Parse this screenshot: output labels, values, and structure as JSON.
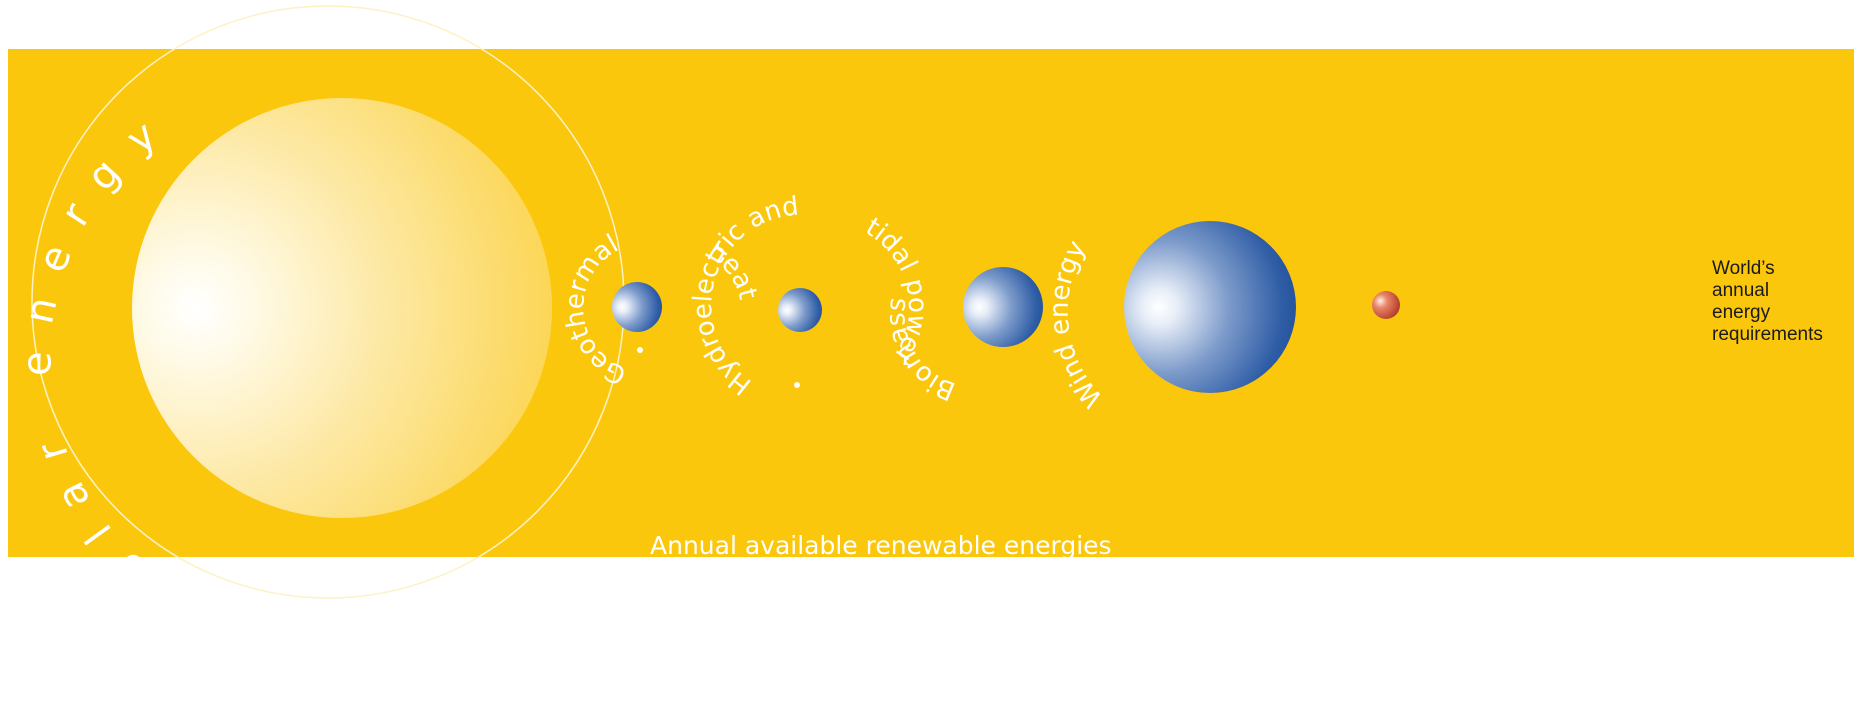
{
  "colors": {
    "background_band": "#fbc70d",
    "page": "#ffffff",
    "text_on_band": "#ffffff",
    "legend_text": "#1a1a1a",
    "sphere_blue": "#1d4f9a",
    "sphere_red": "#b02f1b"
  },
  "diagram": {
    "title": "Annual available renewable energies",
    "sources": [
      {
        "key": "solar",
        "label": "Solar energy"
      },
      {
        "key": "geothermal",
        "label": "Geothermal heat"
      },
      {
        "key": "hydro",
        "label": "Hydroelectric and tidal power"
      },
      {
        "key": "biomass",
        "label": "Biomass"
      },
      {
        "key": "wind",
        "label": "Wind energy"
      }
    ],
    "reference": {
      "key": "world",
      "lines": [
        "World’s",
        "annual",
        "energy",
        "requirements"
      ]
    }
  }
}
